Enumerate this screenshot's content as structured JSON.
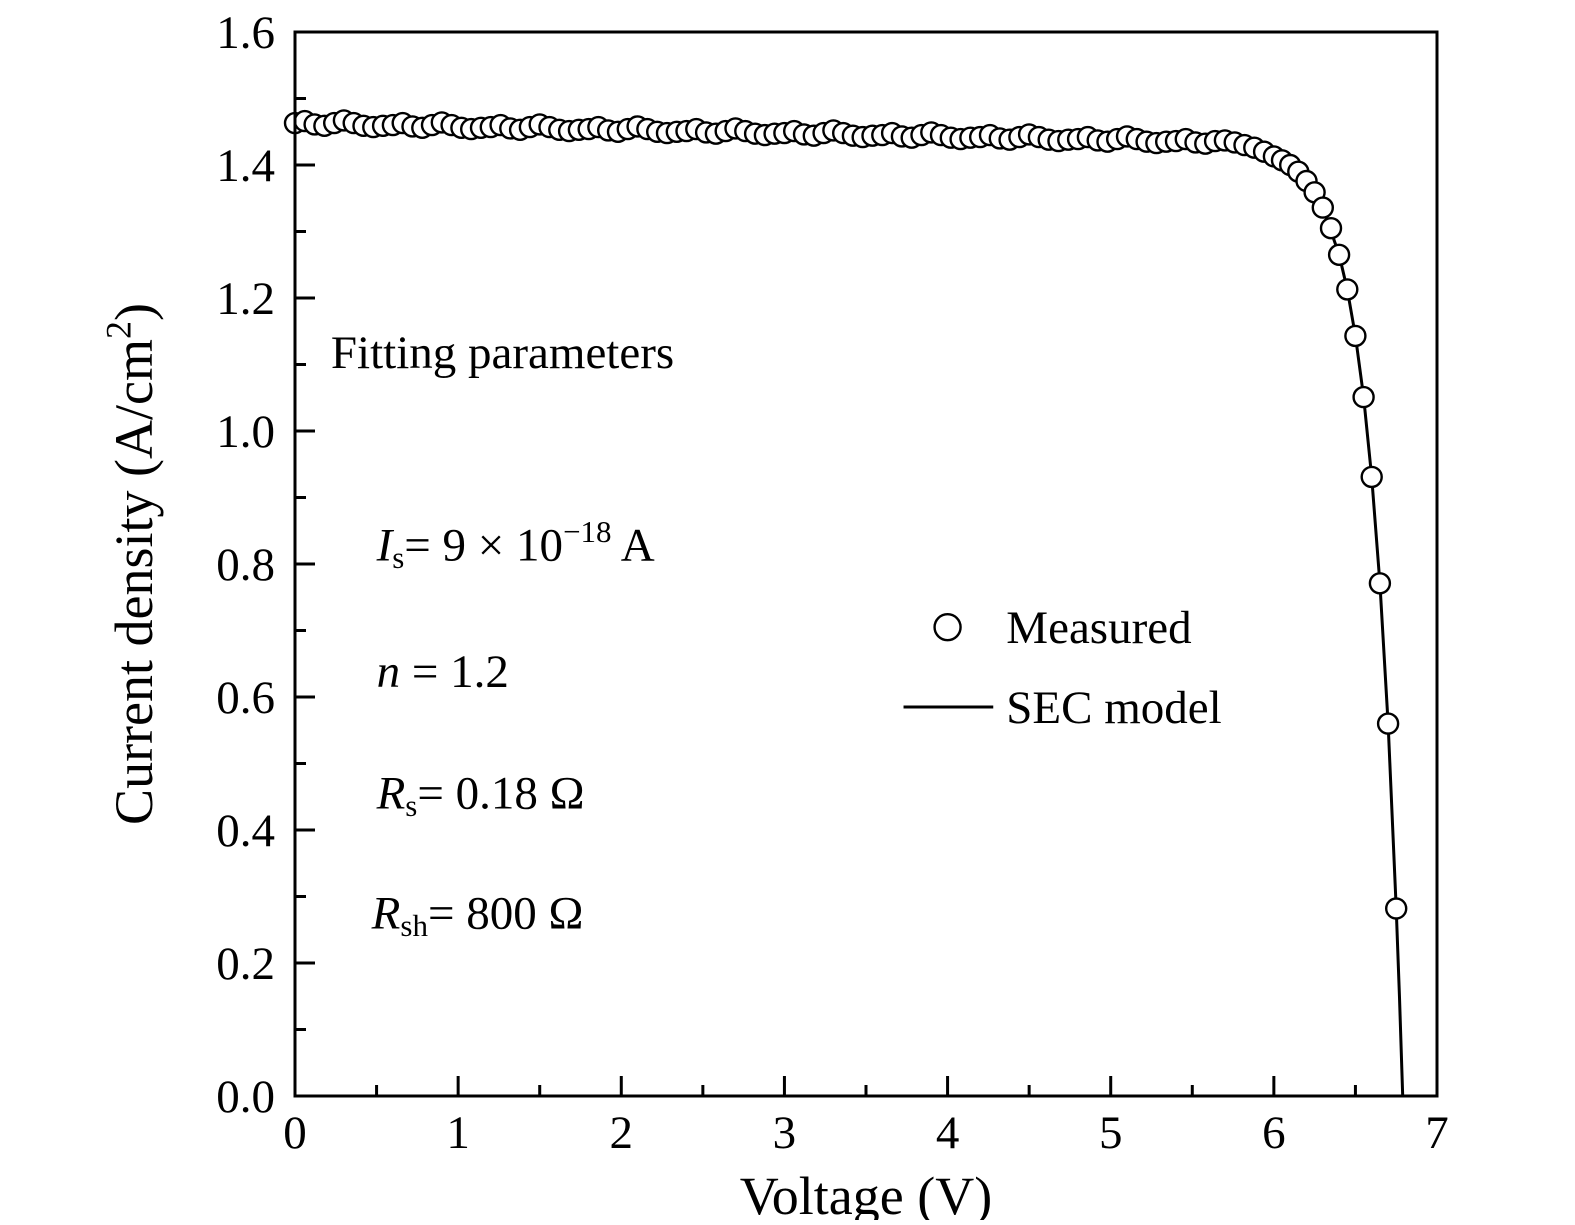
{
  "figure": {
    "background": "#ffffff",
    "line_color": "#000000",
    "marker_color": "#000000",
    "marker_fill": "#ffffff"
  },
  "chart_data": {
    "type": "scatter",
    "title": "",
    "xlabel": "Voltage (V)",
    "ylabel_parts": [
      {
        "t": "Current density (A/cm"
      },
      {
        "t": "2",
        "sup": true
      },
      {
        "t": ")"
      }
    ],
    "x_axis": {
      "min": 0,
      "max": 7,
      "minor_step": 0.5,
      "ticks": [
        {
          "value": 0,
          "label": "0"
        },
        {
          "value": 1,
          "label": "1"
        },
        {
          "value": 2,
          "label": "2"
        },
        {
          "value": 3,
          "label": "3"
        },
        {
          "value": 4,
          "label": "4"
        },
        {
          "value": 5,
          "label": "5"
        },
        {
          "value": 6,
          "label": "6"
        },
        {
          "value": 7,
          "label": "7"
        }
      ]
    },
    "y_axis": {
      "min": 0,
      "max": 1.6,
      "minor_step": 0.1,
      "ticks": [
        {
          "value": 0.0,
          "label": "0.0"
        },
        {
          "value": 0.2,
          "label": "0.2"
        },
        {
          "value": 0.4,
          "label": "0.4"
        },
        {
          "value": 0.6,
          "label": "0.6"
        },
        {
          "value": 0.8,
          "label": "0.8"
        },
        {
          "value": 1.0,
          "label": "1.0"
        },
        {
          "value": 1.2,
          "label": "1.2"
        },
        {
          "value": 1.4,
          "label": "1.4"
        },
        {
          "value": 1.6,
          "label": "1.6"
        }
      ]
    },
    "grid": false,
    "series": [
      {
        "name": "Measured",
        "type": "scatter",
        "marker": "open-circle",
        "points": [
          [
            0.0,
            1.463
          ],
          [
            0.06,
            1.466
          ],
          [
            0.12,
            1.461
          ],
          [
            0.18,
            1.459
          ],
          [
            0.24,
            1.463
          ],
          [
            0.3,
            1.467
          ],
          [
            0.36,
            1.463
          ],
          [
            0.42,
            1.459
          ],
          [
            0.48,
            1.457
          ],
          [
            0.54,
            1.459
          ],
          [
            0.6,
            1.46
          ],
          [
            0.66,
            1.463
          ],
          [
            0.72,
            1.458
          ],
          [
            0.78,
            1.456
          ],
          [
            0.84,
            1.46
          ],
          [
            0.9,
            1.464
          ],
          [
            0.96,
            1.46
          ],
          [
            1.02,
            1.456
          ],
          [
            1.08,
            1.454
          ],
          [
            1.14,
            1.456
          ],
          [
            1.2,
            1.457
          ],
          [
            1.26,
            1.46
          ],
          [
            1.32,
            1.455
          ],
          [
            1.38,
            1.453
          ],
          [
            1.44,
            1.457
          ],
          [
            1.5,
            1.461
          ],
          [
            1.56,
            1.457
          ],
          [
            1.62,
            1.453
          ],
          [
            1.68,
            1.451
          ],
          [
            1.74,
            1.453
          ],
          [
            1.8,
            1.454
          ],
          [
            1.86,
            1.457
          ],
          [
            1.92,
            1.452
          ],
          [
            1.98,
            1.45
          ],
          [
            2.04,
            1.454
          ],
          [
            2.1,
            1.458
          ],
          [
            2.16,
            1.454
          ],
          [
            2.22,
            1.45
          ],
          [
            2.28,
            1.448
          ],
          [
            2.34,
            1.45
          ],
          [
            2.4,
            1.451
          ],
          [
            2.46,
            1.454
          ],
          [
            2.52,
            1.449
          ],
          [
            2.58,
            1.447
          ],
          [
            2.64,
            1.451
          ],
          [
            2.7,
            1.455
          ],
          [
            2.76,
            1.451
          ],
          [
            2.82,
            1.447
          ],
          [
            2.88,
            1.445
          ],
          [
            2.94,
            1.447
          ],
          [
            3.0,
            1.448
          ],
          [
            3.06,
            1.451
          ],
          [
            3.12,
            1.446
          ],
          [
            3.18,
            1.444
          ],
          [
            3.24,
            1.448
          ],
          [
            3.3,
            1.452
          ],
          [
            3.36,
            1.448
          ],
          [
            3.42,
            1.444
          ],
          [
            3.48,
            1.442
          ],
          [
            3.54,
            1.444
          ],
          [
            3.6,
            1.445
          ],
          [
            3.66,
            1.448
          ],
          [
            3.72,
            1.443
          ],
          [
            3.78,
            1.441
          ],
          [
            3.84,
            1.445
          ],
          [
            3.9,
            1.449
          ],
          [
            3.96,
            1.445
          ],
          [
            4.02,
            1.441
          ],
          [
            4.08,
            1.439
          ],
          [
            4.14,
            1.441
          ],
          [
            4.2,
            1.442
          ],
          [
            4.26,
            1.445
          ],
          [
            4.32,
            1.44
          ],
          [
            4.38,
            1.438
          ],
          [
            4.44,
            1.442
          ],
          [
            4.5,
            1.446
          ],
          [
            4.56,
            1.442
          ],
          [
            4.62,
            1.438
          ],
          [
            4.68,
            1.436
          ],
          [
            4.74,
            1.438
          ],
          [
            4.8,
            1.439
          ],
          [
            4.86,
            1.442
          ],
          [
            4.92,
            1.437
          ],
          [
            4.98,
            1.435
          ],
          [
            5.04,
            1.439
          ],
          [
            5.1,
            1.443
          ],
          [
            5.16,
            1.439
          ],
          [
            5.22,
            1.435
          ],
          [
            5.28,
            1.433
          ],
          [
            5.34,
            1.435
          ],
          [
            5.4,
            1.436
          ],
          [
            5.46,
            1.439
          ],
          [
            5.52,
            1.434
          ],
          [
            5.58,
            1.432
          ],
          [
            5.64,
            1.436
          ],
          [
            5.7,
            1.437
          ],
          [
            5.76,
            1.434
          ],
          [
            5.82,
            1.43
          ],
          [
            5.88,
            1.426
          ],
          [
            5.94,
            1.42
          ],
          [
            6.0,
            1.413
          ],
          [
            6.05,
            1.407
          ],
          [
            6.1,
            1.4
          ],
          [
            6.15,
            1.39
          ],
          [
            6.2,
            1.376
          ],
          [
            6.25,
            1.359
          ],
          [
            6.3,
            1.336
          ],
          [
            6.35,
            1.305
          ],
          [
            6.4,
            1.265
          ],
          [
            6.45,
            1.213
          ],
          [
            6.5,
            1.143
          ],
          [
            6.55,
            1.051
          ],
          [
            6.6,
            0.931
          ],
          [
            6.65,
            0.771
          ],
          [
            6.7,
            0.56
          ],
          [
            6.75,
            0.282
          ]
        ]
      },
      {
        "name": "SEC model",
        "type": "line",
        "points": [
          [
            0.0,
            1.4605
          ],
          [
            0.5,
            1.4581
          ],
          [
            1.0,
            1.4556
          ],
          [
            1.5,
            1.4532
          ],
          [
            2.0,
            1.4507
          ],
          [
            2.5,
            1.4483
          ],
          [
            3.0,
            1.4458
          ],
          [
            3.5,
            1.4434
          ],
          [
            4.0,
            1.4409
          ],
          [
            4.5,
            1.4385
          ],
          [
            5.0,
            1.4359
          ],
          [
            5.2,
            1.4348
          ],
          [
            5.4,
            1.4334
          ],
          [
            5.6,
            1.4311
          ],
          [
            5.8,
            1.4262
          ],
          [
            5.9,
            1.4214
          ],
          [
            6.0,
            1.4133
          ],
          [
            6.1,
            1.3996
          ],
          [
            6.2,
            1.3763
          ],
          [
            6.3,
            1.3356
          ],
          [
            6.4,
            1.2653
          ],
          [
            6.45,
            1.2126
          ],
          [
            6.5,
            1.1431
          ],
          [
            6.55,
            1.0515
          ],
          [
            6.6,
            0.9307
          ],
          [
            6.65,
            0.7711
          ],
          [
            6.7,
            0.5603
          ],
          [
            6.75,
            0.2824
          ],
          [
            6.77,
            0.148
          ],
          [
            6.785,
            0.037
          ],
          [
            6.79,
            0.0
          ]
        ]
      }
    ],
    "fitting_parameters": {
      "Is": "9 × 10^-18 A",
      "n": "1.2",
      "Rs": "0.18 Ω",
      "Rsh": "800 Ω"
    },
    "annotations": [
      {
        "name": "fitting-parameters-title",
        "x": 0.22,
        "y": 1.095,
        "parts": [
          {
            "t": "Fitting parameters"
          }
        ]
      },
      {
        "name": "param-is",
        "x": 0.5,
        "y": 0.805,
        "parts": [
          {
            "t": "I",
            "i": true
          },
          {
            "t": "s",
            "sub": true
          },
          {
            "t": "= 9 × 10"
          },
          {
            "t": "−18",
            "sup": true
          },
          {
            "t": " A"
          }
        ]
      },
      {
        "name": "param-n",
        "x": 0.5,
        "y": 0.615,
        "parts": [
          {
            "t": "n",
            "i": true
          },
          {
            "t": " = 1.2"
          }
        ]
      },
      {
        "name": "param-rs",
        "x": 0.5,
        "y": 0.432,
        "parts": [
          {
            "t": "R",
            "i": true
          },
          {
            "t": "s",
            "sub": true
          },
          {
            "t": "= 0.18 Ω"
          }
        ]
      },
      {
        "name": "param-rsh",
        "x": 0.47,
        "y": 0.252,
        "parts": [
          {
            "t": "R",
            "i": true
          },
          {
            "t": "sh",
            "sub": true
          },
          {
            "t": "= 800 Ω"
          }
        ]
      }
    ],
    "legend": {
      "position": "inside-right-middle",
      "sample_x1": 3.73,
      "sample_x2": 4.28,
      "sample_cx": 4.0,
      "text_x": 4.36,
      "rows": [
        {
          "marker": "circle",
          "label": "Measured",
          "y": 0.705
        },
        {
          "marker": "line",
          "label": "SEC model",
          "y": 0.585
        }
      ]
    }
  }
}
